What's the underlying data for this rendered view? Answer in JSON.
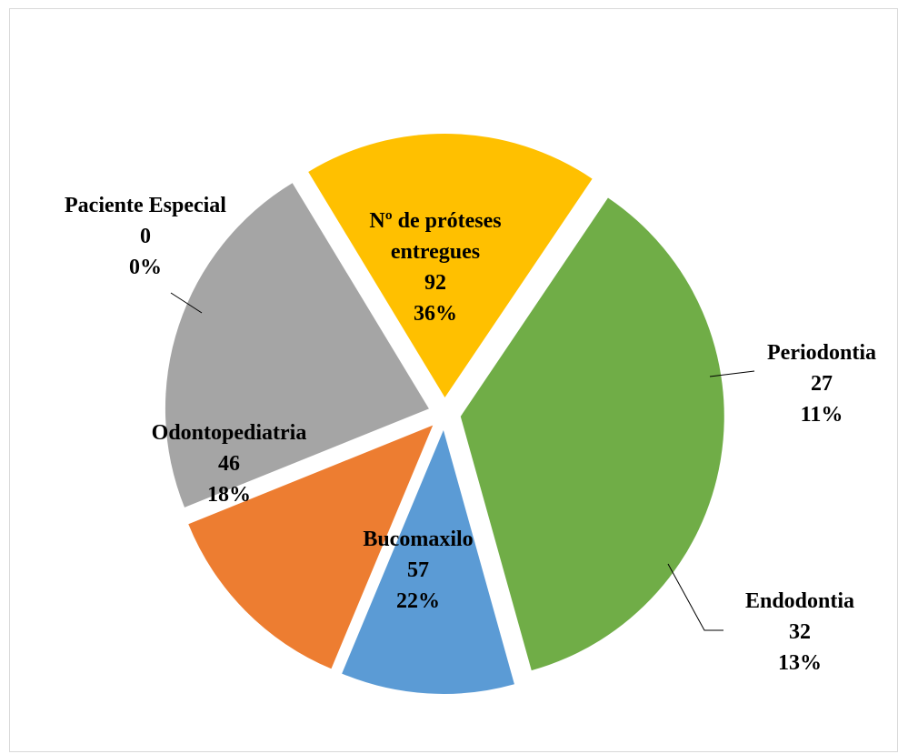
{
  "chart_data": {
    "type": "pie",
    "title": "",
    "slices": [
      {
        "label": "Nº de próteses entregues",
        "label_lines": [
          "Nº de próteses",
          "entregues"
        ],
        "value": 92,
        "percent": "36%",
        "color": "#70ad47"
      },
      {
        "label": "Periodontia",
        "label_lines": [
          "Periodontia"
        ],
        "value": 27,
        "percent": "11%",
        "color": "#5b9bd5"
      },
      {
        "label": "Endodontia",
        "label_lines": [
          "Endodontia"
        ],
        "value": 32,
        "percent": "13%",
        "color": "#ed7d31"
      },
      {
        "label": "Bucomaxilo",
        "label_lines": [
          "Bucomaxilo"
        ],
        "value": 57,
        "percent": "22%",
        "color": "#a5a5a5"
      },
      {
        "label": "Odontopediatria",
        "label_lines": [
          "Odontopediatria"
        ],
        "value": 46,
        "percent": "18%",
        "color": "#ffc000"
      },
      {
        "label": "Paciente Especial",
        "label_lines": [
          "Paciente Especial"
        ],
        "value": 0,
        "percent": "0%",
        "color": "#4472c4"
      }
    ],
    "legend": "none",
    "exploded": true
  }
}
